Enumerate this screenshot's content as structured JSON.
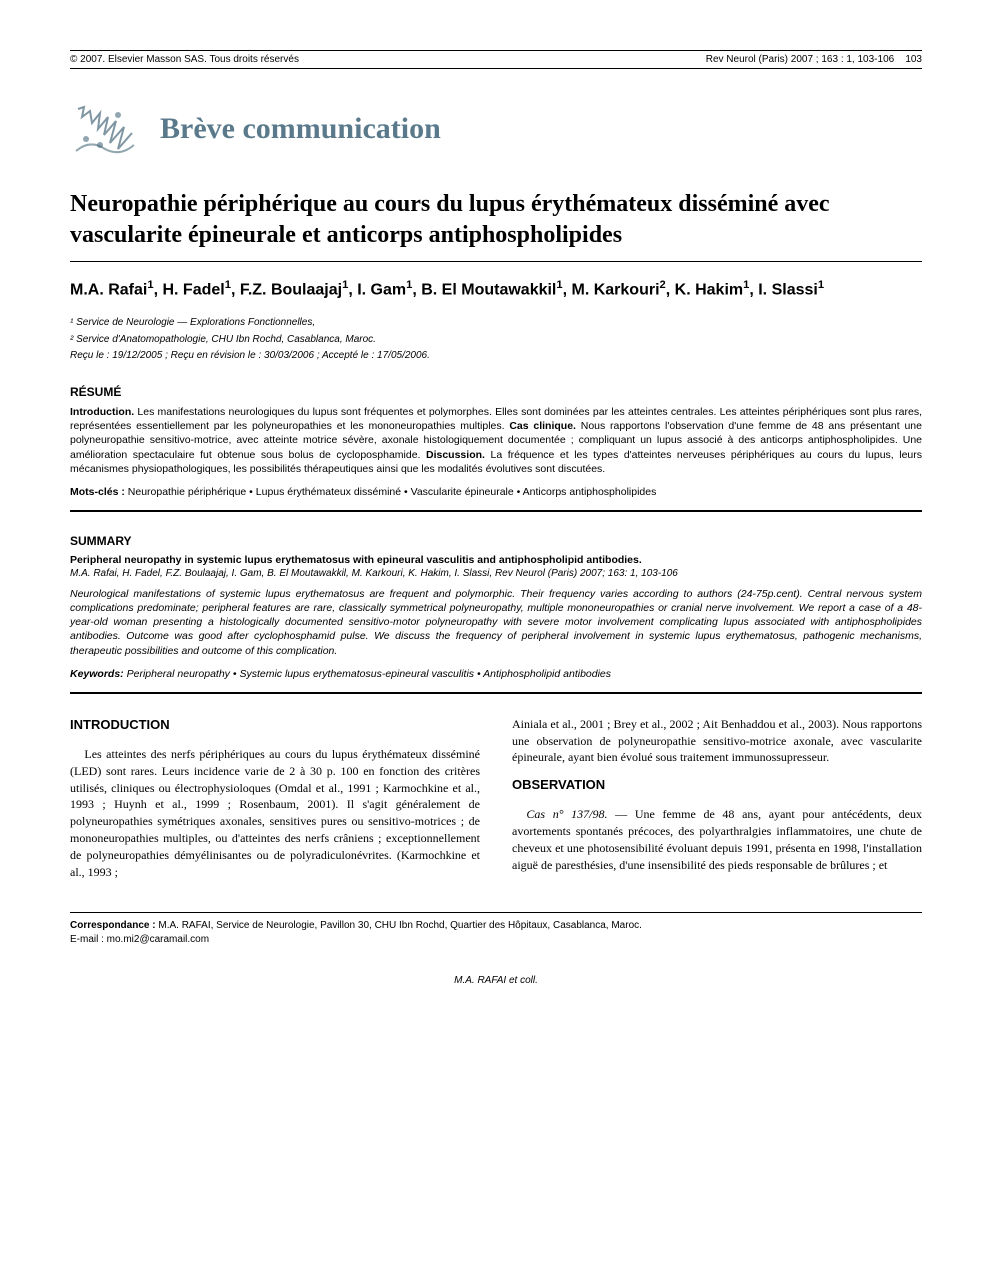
{
  "header": {
    "left": "© 2007. Elsevier Masson SAS. Tous droits réservés",
    "right": "Rev Neurol (Paris) 2007 ; 163 : 1, 103-106",
    "page_number": "103"
  },
  "section_heading": "Brève communication",
  "colors": {
    "section_heading": "#5a7a8c",
    "text": "#000000",
    "background": "#ffffff",
    "logo_fill": "#4a6a7c"
  },
  "title": "Neuropathie périphérique au cours du lupus érythémateux disséminé avec vascularite épineurale et anticorps antiphospholipides",
  "authors": "M.A. Rafai¹, H. Fadel¹, F.Z. Boulaajaj¹, I. Gam¹, B. El Moutawakkil¹, M. Karkouri², K. Hakim¹, I. Slassi¹",
  "affiliations": [
    "¹ Service de Neurologie — Explorations Fonctionnelles,",
    "² Service d'Anatomopathologie, CHU Ibn Rochd, Casablanca, Maroc."
  ],
  "dates": "Reçu le : 19/12/2005 ; Reçu en révision le : 30/03/2006 ; Accepté le : 17/05/2006.",
  "resume": {
    "heading": "RÉSUMÉ",
    "body_html": "<b>Introduction.</b> Les manifestations neurologiques du lupus sont fréquentes et polymorphes. Elles sont dominées par les atteintes centrales. Les atteintes périphériques sont plus rares, représentées essentiellement par les polyneuropathies et les mononeuropathies multiples. <b>Cas clinique.</b> Nous rapportons l'observation d'une femme de 48 ans présentant une polyneuropathie sensitivo-motrice, avec atteinte motrice sévère, axonale histologiquement documentée ; compliquant un lupus associé à des anticorps antiphospholipides. Une amélioration spectaculaire fut obtenue sous bolus de cycloposphamide. <b>Discussion.</b> La fréquence et les types d'atteintes nerveuses périphériques au cours du lupus, leurs mécanismes physiopathologiques, les possibilités thérapeutiques ainsi que les modalités évolutives sont discutées.",
    "keywords_label": "Mots-clés :",
    "keywords": "Neuropathie périphérique • Lupus érythémateux disséminé • Vascularite épineurale • Anticorps antiphospholipides"
  },
  "summary": {
    "heading": "SUMMARY",
    "title": "Peripheral neuropathy in systemic lupus erythematosus with epineural vasculitis and antiphospholipid antibodies.",
    "citation": "M.A. Rafai, H. Fadel, F.Z. Boulaajaj, I. Gam, B. El Moutawakkil, M. Karkouri, K. Hakim, I. Slassi, Rev Neurol (Paris) 2007; 163: 1, 103-106",
    "body": "Neurological manifestations of systemic lupus erythematosus are frequent and polymorphic. Their frequency varies according to authors (24-75p.cent). Central nervous system complications predominate; peripheral features are rare, classically symmetrical polyneuropathy, multiple mononeuropathies or cranial nerve involvement. We report a case of a 48-year-old woman presenting a histologically documented sensitivo-motor polyneuropathy with severe motor involvement complicating lupus associated with antiphospholipides antibodies. Outcome was good after cyclophosphamid pulse. We discuss the frequency of peripheral involvement in systemic lupus erythematosus, pathogenic mechanisms, therapeutic possibilities and outcome of this complication.",
    "keywords_label": "Keywords:",
    "keywords": "Peripheral neuropathy • Systemic lupus erythematosus-epineural vasculitis • Antiphospholipid antibodies"
  },
  "body": {
    "introduction_heading": "INTRODUCTION",
    "observation_heading": "OBSERVATION",
    "left_intro": "Les atteintes des nerfs périphériques au cours du lupus érythémateux disséminé (LED) sont rares. Leurs incidence varie de 2 à 30 p. 100 en fonction des critères utilisés, cliniques ou électrophysioloques (Omdal et al., 1991 ; Karmochkine et al., 1993 ; Huynh et al., 1999 ; Rosenbaum, 2001). Il s'agit généralement de polyneuropathies symétriques axonales, sensitives pures ou sensitivo-motrices ; de mononeuropathies multiples, ou d'atteintes des nerfs crâniens ; exceptionnellement de polyneuropathies démyélinisantes ou de polyradiculonévrites. (Karmochkine et al., 1993 ;",
    "right_intro_continuation": "Ainiala et al., 2001 ; Brey et al., 2002 ; Ait Benhaddou et al., 2003). Nous rapportons une observation de polyneuropathie sensitivo-motrice axonale, avec vascularite épineurale, ayant bien évolué sous traitement immunossupresseur.",
    "observation_text": "Cas n° 137/98. — Une femme de 48 ans, ayant pour antécédents, deux avortements spontanés précoces, des polyarthralgies inflammatoires, une chute de cheveux et une photosensibilité évoluant depuis 1991, présenta en 1998, l'installation aiguë de paresthésies, d'une insensibilité des pieds responsable de brûlures ; et"
  },
  "correspondence": {
    "label": "Correspondance :",
    "text": "M.A. RAFAI, Service de Neurologie, Pavillon 30, CHU Ibn Rochd, Quartier des Hôpitaux, Casablanca, Maroc.",
    "email": "E-mail : mo.mi2@caramail.com"
  },
  "footer_author": "M.A. RAFAI et coll."
}
